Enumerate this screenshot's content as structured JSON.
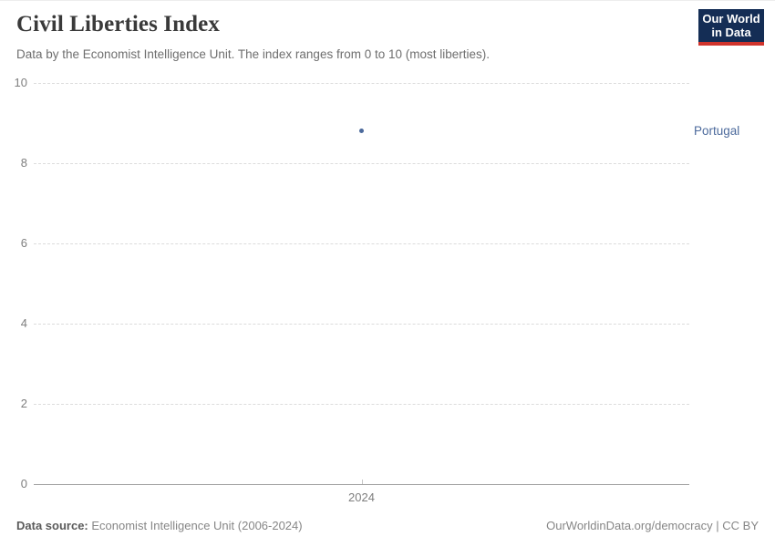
{
  "header": {
    "title": "Civil Liberties Index",
    "subtitle": "Data by the Economist Intelligence Unit. The index ranges from 0 to 10 (most liberties).",
    "logo": {
      "line1": "Our World",
      "line2": "in Data"
    }
  },
  "chart_data": {
    "type": "scatter",
    "title": "Civil Liberties Index",
    "categories": [
      2024
    ],
    "series": [
      {
        "name": "Portugal",
        "x": [
          2024
        ],
        "values": [
          8.8
        ],
        "color": "#4C6A9C"
      }
    ],
    "xticks": [
      "2024"
    ],
    "yticks": [
      0,
      2,
      4,
      6,
      8,
      10
    ],
    "ylim": [
      0,
      10
    ],
    "grid": true,
    "legend_position": "right"
  },
  "footer": {
    "source_label": "Data source:",
    "source_value": " Economist Intelligence Unit (2006-2024)",
    "rights": "OurWorldinData.org/democracy | CC BY"
  },
  "colors": {
    "series": "#4C6A9C",
    "logo_background": "#142d55",
    "logo_accent": "#d0342c",
    "gridline": "#dcdcdc",
    "axis_line": "#a3a3a3",
    "tick_label": "#7e7e7e",
    "title_text": "#3a3a3a",
    "subtitle_text": "#6e6e6e"
  }
}
